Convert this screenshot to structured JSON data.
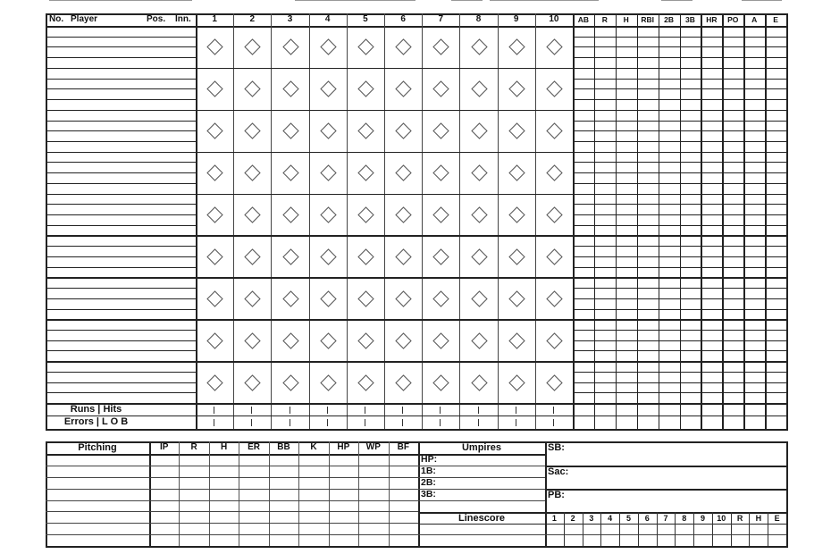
{
  "lineup": {
    "header": {
      "no": "No.",
      "player": "Player",
      "pos": "Pos.",
      "inn": "Inn."
    },
    "innings": [
      "1",
      "2",
      "3",
      "4",
      "5",
      "6",
      "7",
      "8",
      "9",
      "10"
    ],
    "stats": [
      "AB",
      "R",
      "H",
      "RBI",
      "2B",
      "3B",
      "HR",
      "PO",
      "A",
      "E"
    ],
    "totals": {
      "row1": "Runs | Hits",
      "row2": "Errors | L O B"
    }
  },
  "pitching": {
    "header": "Pitching",
    "columns": [
      "IP",
      "R",
      "H",
      "ER",
      "BB",
      "K",
      "HP",
      "WP",
      "BF"
    ]
  },
  "umpires": {
    "header": "Umpires",
    "positions": [
      "HP:",
      "1B:",
      "2B:",
      "3B:"
    ]
  },
  "notes": {
    "sb": "SB:",
    "sac": "Sac:",
    "pb": "PB:"
  },
  "linescore": {
    "header": "Linescore",
    "columns": [
      "1",
      "2",
      "3",
      "4",
      "5",
      "6",
      "7",
      "8",
      "9",
      "10",
      "R",
      "H",
      "E"
    ]
  }
}
